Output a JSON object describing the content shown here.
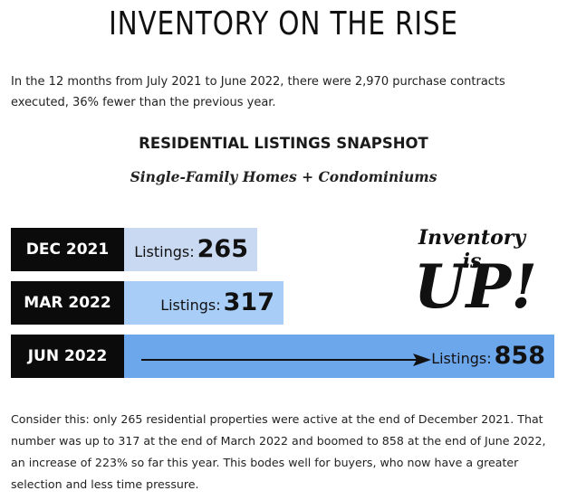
{
  "title": "INVENTORY ON THE RISE",
  "intro": "In the 12 months from July 2021 to  June 2022, there were 2,970 purchase contracts executed, 36% fewer than the previous year.",
  "chart_data": {
    "type": "bar",
    "title": "RESIDENTIAL LISTINGS SNAPSHOT",
    "subtitle": "Single-Family Homes + Condominiums",
    "categories": [
      "DEC 2021",
      "MAR 2022",
      "JUN 2022"
    ],
    "value_label": "Listings:",
    "values": [
      265,
      317,
      858
    ],
    "series": [
      {
        "values": [
          265,
          317,
          858
        ]
      }
    ],
    "bar_colors": [
      "#cad9f2",
      "#a8cdf7",
      "#6ca6eb"
    ],
    "label_bg": "#0b0b0b",
    "orientation": "horizontal"
  },
  "callout": {
    "line1": "Inventory is",
    "line2": "UP!"
  },
  "body": "Consider this: only 265 residential properties were active at the end of December 2021. That number was up to 317 at the end of March 2022 and boomed to 858 at the end of June 2022, an increase of 223% so far this year. This bodes well for buyers, who now have a greater selection and less time pressure."
}
